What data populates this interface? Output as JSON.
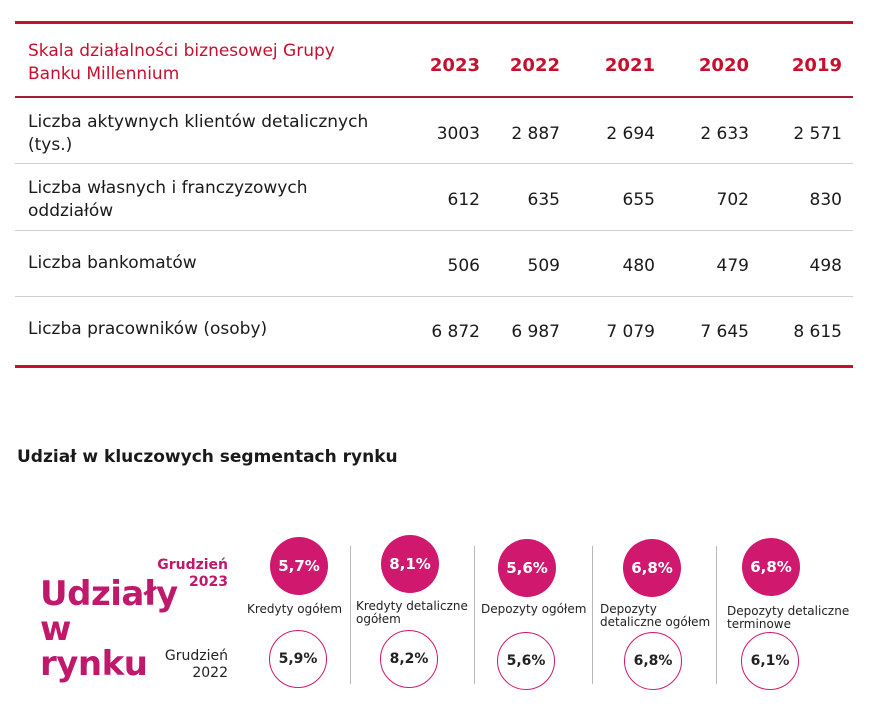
{
  "table": {
    "title": "Skala działalności biznesowej Grupy Banku Millennium",
    "years": [
      "2023",
      "2022",
      "2021",
      "2020",
      "2019"
    ],
    "rows": [
      {
        "label": "Liczba aktywnych klientów detalicznych (tys.)",
        "values": [
          "3003",
          "2 887",
          "2 694",
          "2 633",
          "2 571"
        ]
      },
      {
        "label": "Liczba własnych i franczyzowych oddziałów",
        "values": [
          "612",
          "635",
          "655",
          "702",
          "830"
        ]
      },
      {
        "label": "Liczba bankomatów",
        "values": [
          "506",
          "509",
          "480",
          "479",
          "498"
        ]
      },
      {
        "label": "Liczba pracowników (osoby)",
        "values": [
          "6 872",
          "6 987",
          "7 079",
          "7 645",
          "8 615"
        ]
      }
    ]
  },
  "market": {
    "section_title": "Udział w kluczowych segmentach rynku",
    "big_title": "Udziały w rynku",
    "label_2023": "Grudzień 2023",
    "label_2022": "Grudzień 2022",
    "accent_color": "#d0186e",
    "segments": [
      {
        "name": "Kredyty ogółem",
        "share_2023": "5,7%",
        "share_2022": "5,9%"
      },
      {
        "name": "Kredyty detaliczne ogółem",
        "share_2023": "8,1%",
        "share_2022": "8,2%"
      },
      {
        "name": "Depozyty ogółem",
        "share_2023": "5,6%",
        "share_2022": "5,6%"
      },
      {
        "name": "Depozyty detaliczne ogółem",
        "share_2023": "6,8%",
        "share_2022": "6,8%"
      },
      {
        "name": "Depozyty detaliczne terminowe",
        "share_2023": "6,8%",
        "share_2022": "6,1%"
      }
    ]
  }
}
